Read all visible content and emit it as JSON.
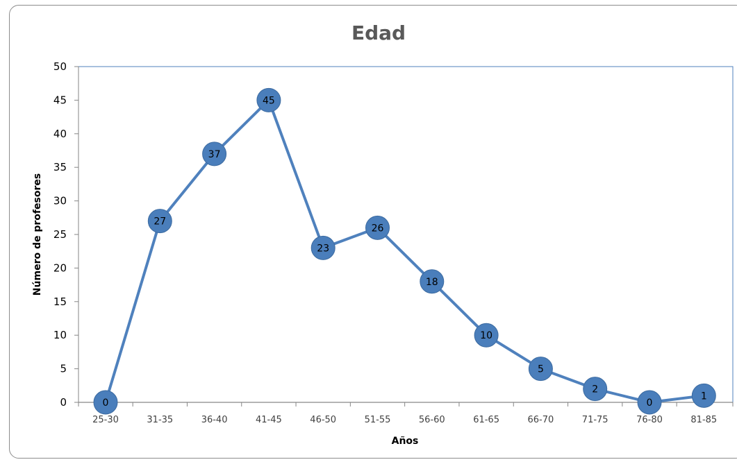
{
  "chart_data": {
    "type": "line",
    "title": "Edad",
    "xlabel": "Años",
    "ylabel": "Número de profesores",
    "categories": [
      "25-30",
      "31-35",
      "36-40",
      "41-45",
      "46-50",
      "51-55",
      "56-60",
      "61-65",
      "66-70",
      "71-75",
      "76-80",
      "81-85"
    ],
    "series": [
      {
        "values": [
          0,
          27,
          37,
          45,
          23,
          26,
          18,
          10,
          5,
          2,
          0,
          1
        ]
      }
    ],
    "ylim": [
      0,
      50
    ],
    "yticks": [
      0,
      5,
      10,
      15,
      20,
      25,
      30,
      35,
      40,
      45,
      50
    ],
    "grid": false,
    "legend": "none",
    "data_labels": true,
    "colors": {
      "line": "#4f81bd",
      "marker": "#4a7ebb",
      "plot_border": "#4f81bd",
      "axis": "#868686"
    }
  }
}
